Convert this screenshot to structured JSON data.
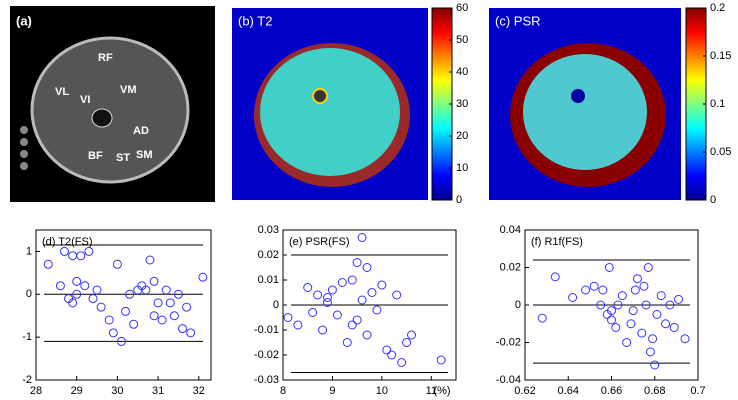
{
  "images": [
    {
      "label": "(a)",
      "annotations": [
        "RF",
        "VL",
        "VI",
        "VM",
        "AD",
        "BF",
        "ST",
        "SM"
      ]
    },
    {
      "label": "(b) T2"
    },
    {
      "label": "(c) PSR"
    }
  ],
  "chart_data": [
    {
      "type": "colorbar",
      "ylim": [
        0,
        60
      ],
      "yticks": [
        0,
        10,
        20,
        30,
        40,
        50,
        60
      ]
    },
    {
      "type": "colorbar",
      "ylim": [
        0,
        0.2
      ],
      "yticks": [
        0,
        0.05,
        0.1,
        0.15,
        0.2
      ]
    },
    {
      "type": "scatter",
      "title": "(d) T2(FS)",
      "color": "#3333ff",
      "xlim": [
        28,
        32.3
      ],
      "xticks": [
        28,
        29,
        30,
        31,
        32
      ],
      "ylim": [
        -2,
        1.5
      ],
      "yticks": [
        -2,
        -1,
        0,
        1
      ],
      "hlines": [
        1.15,
        0,
        -1.1
      ],
      "x": [
        28.3,
        28.6,
        28.7,
        28.8,
        28.9,
        29.0,
        29.1,
        29.2,
        28.9,
        29.3,
        29.4,
        29.5,
        29.6,
        29.8,
        29.9,
        30.0,
        30.1,
        30.2,
        30.3,
        30.4,
        30.5,
        30.6,
        30.7,
        30.8,
        30.9,
        31.0,
        31.1,
        31.2,
        31.3,
        31.4,
        31.5,
        31.6,
        31.7,
        31.8,
        32.1,
        29.0,
        30.9
      ],
      "y": [
        0.7,
        0.2,
        1.0,
        -0.1,
        0.9,
        0.0,
        0.9,
        0.2,
        -0.2,
        1.0,
        -0.1,
        0.1,
        -0.3,
        -0.6,
        -0.9,
        0.7,
        -1.1,
        -0.4,
        0.0,
        -0.7,
        0.1,
        0.2,
        0.1,
        0.8,
        0.3,
        -0.2,
        -0.6,
        0.1,
        -0.2,
        -0.5,
        0.0,
        -0.8,
        -0.3,
        -0.9,
        0.4,
        0.3,
        -0.5
      ]
    },
    {
      "type": "scatter",
      "title": "(e) PSR(FS)",
      "xlabel": "(%)",
      "color": "#3333ff",
      "xlim": [
        8,
        11.5
      ],
      "xticks": [
        8,
        9,
        10,
        11
      ],
      "ylim": [
        -0.03,
        0.03
      ],
      "yticks": [
        -0.03,
        -0.02,
        -0.01,
        0,
        0.01,
        0.02,
        0.03
      ],
      "hlines": [
        0.02,
        0,
        -0.027
      ],
      "x": [
        8.1,
        8.3,
        8.5,
        8.6,
        8.7,
        8.8,
        8.9,
        9.0,
        9.1,
        9.2,
        9.3,
        9.4,
        9.5,
        9.5,
        9.6,
        9.6,
        9.7,
        9.7,
        9.8,
        9.9,
        10.0,
        10.1,
        10.2,
        10.3,
        10.4,
        10.5,
        10.6,
        11.2,
        9.4,
        8.9
      ],
      "y": [
        -0.005,
        -0.008,
        0.007,
        -0.003,
        0.004,
        -0.01,
        0.003,
        0.006,
        -0.004,
        0.009,
        -0.015,
        0.01,
        0.017,
        -0.006,
        0.027,
        0.002,
        -0.012,
        0.015,
        0.005,
        -0.002,
        0.008,
        -0.018,
        -0.02,
        0.004,
        -0.023,
        -0.015,
        -0.012,
        -0.022,
        -0.008,
        0.001
      ]
    },
    {
      "type": "scatter",
      "title": "(f) R1f(FS)",
      "color": "#3333ff",
      "xlim": [
        0.62,
        0.7
      ],
      "xticks": [
        0.62,
        0.64,
        0.66,
        0.68,
        0.7
      ],
      "ylim": [
        -0.04,
        0.04
      ],
      "yticks": [
        -0.04,
        -0.02,
        0,
        0.02,
        0.04
      ],
      "hlines": [
        0.024,
        0,
        -0.031
      ],
      "x": [
        0.628,
        0.634,
        0.642,
        0.648,
        0.652,
        0.655,
        0.656,
        0.658,
        0.659,
        0.66,
        0.662,
        0.663,
        0.665,
        0.667,
        0.669,
        0.671,
        0.672,
        0.674,
        0.675,
        0.676,
        0.677,
        0.678,
        0.679,
        0.68,
        0.681,
        0.683,
        0.685,
        0.687,
        0.689,
        0.691,
        0.694,
        0.66,
        0.67
      ],
      "y": [
        -0.007,
        0.015,
        0.004,
        0.008,
        0.01,
        0.0,
        0.008,
        -0.005,
        0.02,
        -0.003,
        -0.012,
        0.0,
        0.005,
        -0.02,
        -0.01,
        0.008,
        0.014,
        -0.015,
        0.01,
        0.0,
        0.02,
        -0.025,
        -0.018,
        -0.032,
        -0.005,
        0.005,
        -0.01,
        0.0,
        -0.012,
        0.003,
        -0.018,
        -0.008,
        -0.003
      ]
    }
  ]
}
